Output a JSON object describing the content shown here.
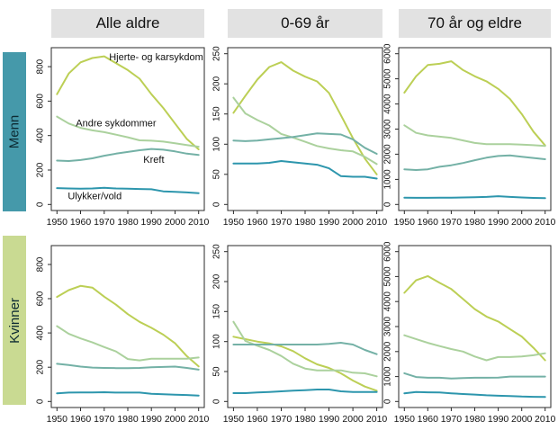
{
  "page": {
    "background": "#ffffff"
  },
  "header_bg": "#e2e2e2",
  "col_headers": [
    {
      "label": "Alle aldre"
    },
    {
      "label": "0-69 år"
    },
    {
      "label": "70 år og eldre"
    }
  ],
  "row_labels": [
    {
      "label": "Menn",
      "color": "#4599aa"
    },
    {
      "label": "Kvinner",
      "color": "#c9da92"
    }
  ],
  "series_meta": [
    {
      "name": "Hjerte- og karsykdom",
      "color": "#bccf55"
    },
    {
      "name": "Andre sykdommer",
      "color": "#abd19d"
    },
    {
      "name": "Kreft",
      "color": "#74b1a6"
    },
    {
      "name": "Ulykker/vold",
      "color": "#2d96ad"
    }
  ],
  "axis": {
    "box_color": "#2a2a2a",
    "tick_color": "#2a2a2a",
    "label_color": "#111111",
    "x_ticks": [
      1950,
      1960,
      1970,
      1980,
      1990,
      2000,
      2010
    ],
    "x_range": [
      1947.6,
      2012.4
    ]
  },
  "chart_data": [
    {
      "type": "line",
      "row": "Menn",
      "col": "Alle aldre",
      "x": [
        1950,
        1955,
        1960,
        1965,
        1970,
        1975,
        1980,
        1985,
        1990,
        1995,
        2000,
        2005,
        2010
      ],
      "yticks": [
        0,
        200,
        400,
        600,
        800
      ],
      "yrange": [
        -35,
        910
      ],
      "series": [
        {
          "name": "Hjerte- og karsykdom",
          "values": [
            640,
            760,
            825,
            850,
            860,
            820,
            780,
            730,
            640,
            560,
            470,
            380,
            320
          ]
        },
        {
          "name": "Andre sykdommer",
          "values": [
            510,
            470,
            445,
            430,
            420,
            405,
            390,
            372,
            370,
            365,
            355,
            345,
            335
          ]
        },
        {
          "name": "Kreft",
          "values": [
            255,
            252,
            258,
            268,
            283,
            295,
            305,
            315,
            322,
            318,
            308,
            295,
            287
          ]
        },
        {
          "name": "Ulykker/vold",
          "values": [
            95,
            93,
            92,
            93,
            97,
            93,
            92,
            90,
            88,
            76,
            73,
            70,
            66
          ]
        }
      ],
      "annotations": [
        {
          "text": "Hjerte- og karsykdom",
          "x": 1992,
          "y": 858
        },
        {
          "text": "Andre sykdommer",
          "x": 1975,
          "y": 475
        },
        {
          "text": "Kreft",
          "x": 1991,
          "y": 263
        },
        {
          "text": "Ulykker/vold",
          "x": 1966,
          "y": 50
        }
      ]
    },
    {
      "type": "line",
      "row": "Menn",
      "col": "0-69 år",
      "x": [
        1950,
        1955,
        1960,
        1965,
        1970,
        1975,
        1980,
        1985,
        1990,
        1995,
        2000,
        2005,
        2010
      ],
      "yticks": [
        0,
        50,
        100,
        150,
        200,
        250
      ],
      "yrange": [
        -10,
        260
      ],
      "series": [
        {
          "name": "Hjerte- og karsykdom",
          "values": [
            152,
            180,
            207,
            228,
            236,
            222,
            212,
            204,
            185,
            148,
            110,
            76,
            50
          ]
        },
        {
          "name": "Andre sykdommer",
          "values": [
            177,
            151,
            140,
            131,
            117,
            111,
            104,
            97,
            93,
            90,
            88,
            79,
            67
          ]
        },
        {
          "name": "Kreft",
          "values": [
            106,
            105,
            106,
            108,
            110,
            112,
            115,
            118,
            117,
            116,
            108,
            94,
            84
          ]
        },
        {
          "name": "Ulykker/vold",
          "values": [
            68,
            68,
            68,
            69,
            72,
            70,
            68,
            66,
            60,
            47,
            46,
            46,
            43
          ]
        }
      ],
      "annotations": []
    },
    {
      "type": "line",
      "row": "Menn",
      "col": "70 år og eldre",
      "x": [
        1950,
        1955,
        1960,
        1965,
        1970,
        1975,
        1980,
        1985,
        1990,
        1995,
        2000,
        2005,
        2010
      ],
      "yticks": [
        0,
        1000,
        2000,
        3000,
        4000,
        5000,
        6000
      ],
      "yrange": [
        -240,
        6240
      ],
      "series": [
        {
          "name": "Hjerte- og karsykdom",
          "values": [
            4450,
            5100,
            5550,
            5600,
            5700,
            5350,
            5100,
            4900,
            4600,
            4200,
            3600,
            2900,
            2350
          ]
        },
        {
          "name": "Andre sykdommer",
          "values": [
            3150,
            2850,
            2750,
            2700,
            2650,
            2550,
            2450,
            2400,
            2400,
            2400,
            2380,
            2360,
            2330
          ]
        },
        {
          "name": "Kreft",
          "values": [
            1400,
            1370,
            1400,
            1500,
            1560,
            1650,
            1760,
            1860,
            1930,
            1950,
            1900,
            1850,
            1800
          ]
        },
        {
          "name": "Ulykker/vold",
          "values": [
            270,
            265,
            265,
            270,
            270,
            280,
            290,
            300,
            330,
            300,
            280,
            260,
            250
          ]
        }
      ],
      "annotations": []
    },
    {
      "type": "line",
      "row": "Kvinner",
      "col": "Alle aldre",
      "x": [
        1950,
        1955,
        1960,
        1965,
        1970,
        1975,
        1980,
        1985,
        1990,
        1995,
        2000,
        2005,
        2010
      ],
      "yticks": [
        0,
        200,
        400,
        600,
        800
      ],
      "yrange": [
        -35,
        910
      ],
      "series": [
        {
          "name": "Hjerte- og karsykdom",
          "values": [
            610,
            650,
            675,
            665,
            612,
            565,
            510,
            465,
            430,
            390,
            340,
            265,
            205
          ]
        },
        {
          "name": "Andre sykdommer",
          "values": [
            440,
            395,
            368,
            345,
            318,
            292,
            248,
            240,
            250,
            250,
            250,
            250,
            257
          ]
        },
        {
          "name": "Kreft",
          "values": [
            220,
            213,
            204,
            198,
            196,
            195,
            195,
            196,
            200,
            202,
            204,
            196,
            186
          ]
        },
        {
          "name": "Ulykker/vold",
          "values": [
            48,
            52,
            53,
            53,
            54,
            52,
            52,
            52,
            45,
            42,
            40,
            38,
            35
          ]
        }
      ],
      "annotations": []
    },
    {
      "type": "line",
      "row": "Kvinner",
      "col": "0-69 år",
      "x": [
        1950,
        1955,
        1960,
        1965,
        1970,
        1975,
        1980,
        1985,
        1990,
        1995,
        2000,
        2005,
        2010
      ],
      "yticks": [
        0,
        50,
        100,
        150,
        200,
        250
      ],
      "yrange": [
        -10,
        260
      ],
      "series": [
        {
          "name": "Hjerte- og karsykdom",
          "values": [
            108,
            104,
            100,
            97,
            92,
            84,
            72,
            62,
            56,
            47,
            35,
            25,
            18
          ]
        },
        {
          "name": "Andre sykdommer",
          "values": [
            133,
            101,
            93,
            86,
            76,
            63,
            55,
            52,
            52,
            52,
            48,
            47,
            42
          ]
        },
        {
          "name": "Kreft",
          "values": [
            95,
            95,
            95,
            95,
            95,
            95,
            95,
            95,
            96,
            98,
            95,
            86,
            79
          ]
        },
        {
          "name": "Ulykker/vold",
          "values": [
            14,
            14,
            15,
            16,
            17,
            18,
            19,
            20,
            20,
            17,
            16,
            16,
            16
          ]
        }
      ],
      "annotations": []
    },
    {
      "type": "line",
      "row": "Kvinner",
      "col": "70 år og eldre",
      "x": [
        1950,
        1955,
        1960,
        1965,
        1970,
        1975,
        1980,
        1985,
        1990,
        1995,
        2000,
        2005,
        2010
      ],
      "yticks": [
        0,
        1000,
        2000,
        3000,
        4000,
        5000,
        6000
      ],
      "yrange": [
        -240,
        6240
      ],
      "series": [
        {
          "name": "Hjerte- og karsykdom",
          "values": [
            4350,
            4850,
            5020,
            4750,
            4500,
            4100,
            3700,
            3400,
            3200,
            2900,
            2600,
            2150,
            1650
          ]
        },
        {
          "name": "Andre sykdommer",
          "values": [
            2650,
            2500,
            2350,
            2220,
            2100,
            2000,
            1800,
            1650,
            1780,
            1780,
            1800,
            1850,
            1930
          ]
        },
        {
          "name": "Kreft",
          "values": [
            1130,
            980,
            950,
            950,
            920,
            940,
            950,
            950,
            960,
            1000,
            1000,
            1000,
            1000
          ]
        },
        {
          "name": "Ulykker/vold",
          "values": [
            330,
            380,
            370,
            360,
            330,
            300,
            280,
            250,
            230,
            220,
            200,
            190,
            185
          ]
        }
      ],
      "annotations": []
    }
  ]
}
